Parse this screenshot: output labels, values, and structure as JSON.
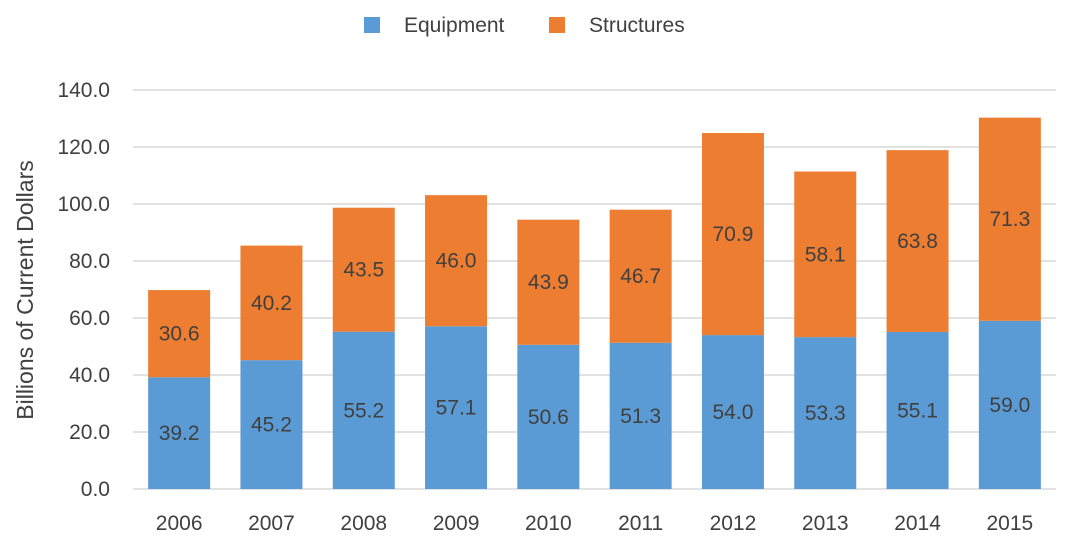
{
  "chart_data": {
    "type": "bar",
    "stacked": true,
    "categories": [
      "2006",
      "2007",
      "2008",
      "2009",
      "2010",
      "2011",
      "2012",
      "2013",
      "2014",
      "2015"
    ],
    "series": [
      {
        "name": "Equipment",
        "color": "#5b9bd5",
        "values": [
          39.2,
          45.2,
          55.2,
          57.1,
          50.6,
          51.3,
          54.0,
          53.3,
          55.1,
          59.0
        ]
      },
      {
        "name": "Structures",
        "color": "#ed7d31",
        "values": [
          30.6,
          40.2,
          43.5,
          46.0,
          43.9,
          46.7,
          70.9,
          58.1,
          63.8,
          71.3
        ]
      }
    ],
    "ylabel": "Billions of Current Dollars",
    "ylim": [
      0,
      140
    ],
    "yticks": [
      "0.0",
      "20.0",
      "40.0",
      "60.0",
      "80.0",
      "100.0",
      "120.0",
      "140.0"
    ],
    "grid": true,
    "legend_position": "top-center"
  }
}
